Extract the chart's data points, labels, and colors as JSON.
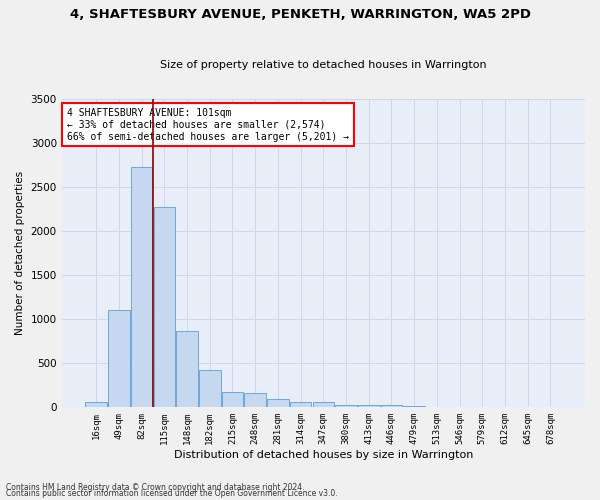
{
  "title": "4, SHAFTESBURY AVENUE, PENKETH, WARRINGTON, WA5 2PD",
  "subtitle": "Size of property relative to detached houses in Warrington",
  "xlabel": "Distribution of detached houses by size in Warrington",
  "ylabel": "Number of detached properties",
  "footnote1": "Contains HM Land Registry data © Crown copyright and database right 2024.",
  "footnote2": "Contains public sector information licensed under the Open Government Licence v3.0.",
  "annotation_line1": "4 SHAFTESBURY AVENUE: 101sqm",
  "annotation_line2": "← 33% of detached houses are smaller (2,574)",
  "annotation_line3": "66% of semi-detached houses are larger (5,201) →",
  "bar_color": "#c5d8f0",
  "bar_edge_color": "#5a9fd4",
  "vline_color": "#8b0000",
  "bg_color": "#e8eef8",
  "grid_color": "#d0d8e8",
  "fig_bg": "#f0f0f0",
  "categories": [
    "16sqm",
    "49sqm",
    "82sqm",
    "115sqm",
    "148sqm",
    "182sqm",
    "215sqm",
    "248sqm",
    "281sqm",
    "314sqm",
    "347sqm",
    "380sqm",
    "413sqm",
    "446sqm",
    "479sqm",
    "513sqm",
    "546sqm",
    "579sqm",
    "612sqm",
    "645sqm",
    "678sqm"
  ],
  "values": [
    55,
    1100,
    2730,
    2280,
    870,
    420,
    170,
    160,
    90,
    60,
    55,
    30,
    30,
    25,
    15,
    5,
    5,
    0,
    0,
    0,
    0
  ],
  "vline_x": 2.5,
  "ylim": [
    0,
    3500
  ],
  "yticks": [
    0,
    500,
    1000,
    1500,
    2000,
    2500,
    3000,
    3500
  ]
}
